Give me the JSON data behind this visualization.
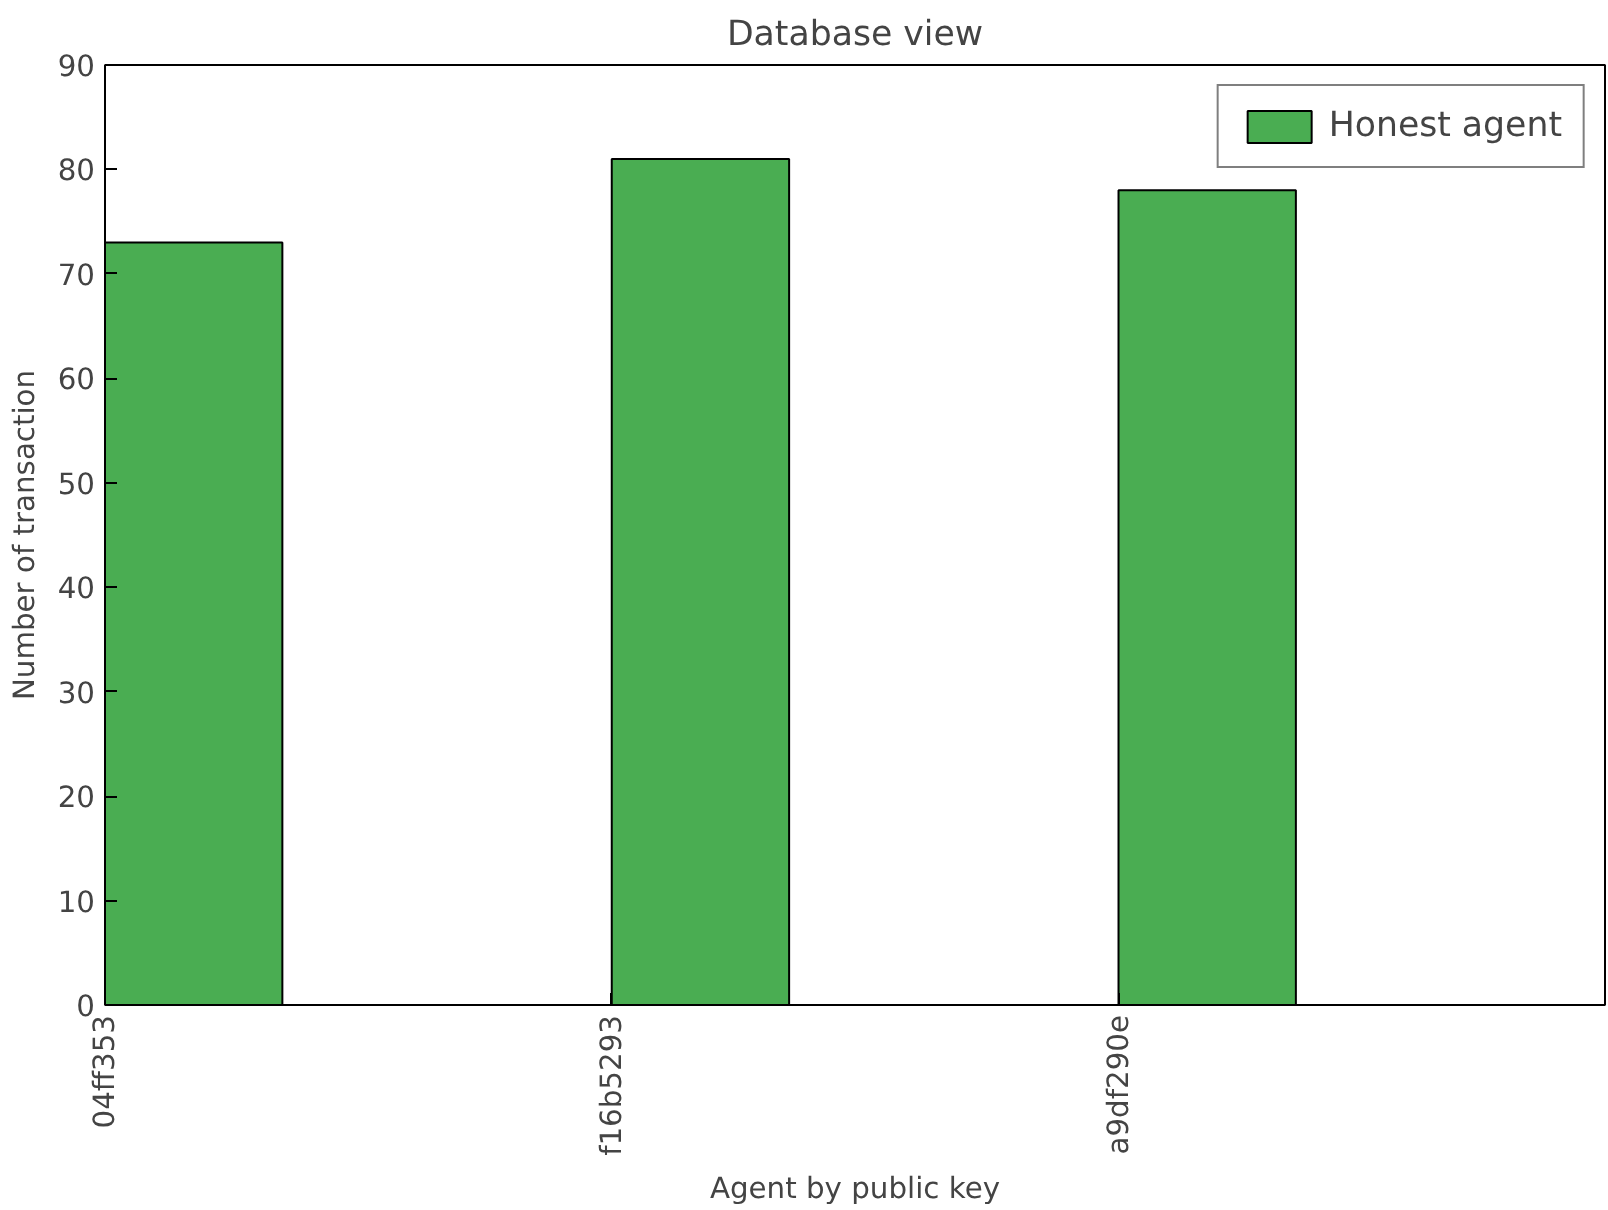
{
  "chart_data": {
    "type": "bar",
    "title": "Database view",
    "xlabel": "Agent by public key",
    "ylabel": "Number of transaction",
    "categories": [
      "04ff353",
      "f16b5293",
      "a9df290e"
    ],
    "series": [
      {
        "name": "Honest agent",
        "color": "#4aad52",
        "values": [
          73,
          81,
          78
        ]
      }
    ],
    "ylim": [
      0,
      90
    ],
    "yticks": [
      0,
      10,
      20,
      30,
      40,
      50,
      60,
      70,
      80,
      90
    ],
    "grid": false,
    "legend": "top right"
  }
}
